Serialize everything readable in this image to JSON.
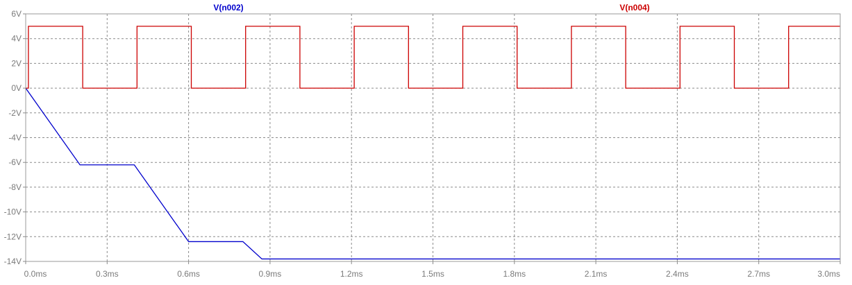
{
  "chart_data": {
    "type": "line",
    "title": "",
    "xlabel": "",
    "ylabel": "",
    "x_unit": "ms",
    "xlim": [
      0.0,
      3.0
    ],
    "ylim": [
      -14,
      6
    ],
    "x_ticks": [
      0.0,
      0.3,
      0.6,
      0.9,
      1.2,
      1.5,
      1.8,
      2.1,
      2.4,
      2.7,
      3.0
    ],
    "x_tick_labels": [
      "0.0ms",
      "0.3ms",
      "0.6ms",
      "0.9ms",
      "1.2ms",
      "1.5ms",
      "1.8ms",
      "2.1ms",
      "2.4ms",
      "2.7ms",
      "3.0ms"
    ],
    "y_ticks": [
      6,
      4,
      2,
      0,
      -2,
      -4,
      -6,
      -8,
      -10,
      -12,
      -14
    ],
    "y_tick_labels": [
      "6V",
      "4V",
      "2V",
      "0V",
      "-2V",
      "-4V",
      "-6V",
      "-8V",
      "-10V",
      "-12V",
      "-14V"
    ],
    "grid": true,
    "legend_position": "top",
    "series": [
      {
        "name": "V(n002)",
        "color": "#0000cc",
        "x": [
          0.0,
          0.2,
          0.4,
          0.6,
          0.8,
          0.87,
          3.0
        ],
        "y": [
          0.0,
          -6.2,
          -6.2,
          -12.4,
          -12.4,
          -13.8,
          -13.8
        ]
      },
      {
        "name": "V(n004)",
        "color": "#cc0000",
        "x": [
          0.0,
          0.01,
          0.01,
          0.21,
          0.21,
          0.41,
          0.41,
          0.61,
          0.61,
          0.81,
          0.81,
          1.01,
          1.01,
          1.21,
          1.21,
          1.41,
          1.41,
          1.61,
          1.61,
          1.81,
          1.81,
          2.01,
          2.01,
          2.21,
          2.21,
          2.41,
          2.41,
          2.61,
          2.61,
          2.81,
          2.81,
          3.0
        ],
        "y": [
          0,
          0,
          5,
          5,
          0,
          0,
          5,
          5,
          0,
          0,
          5,
          5,
          0,
          0,
          5,
          5,
          0,
          0,
          5,
          5,
          0,
          0,
          5,
          5,
          0,
          0,
          5,
          5,
          0,
          0,
          5,
          5
        ]
      }
    ]
  }
}
